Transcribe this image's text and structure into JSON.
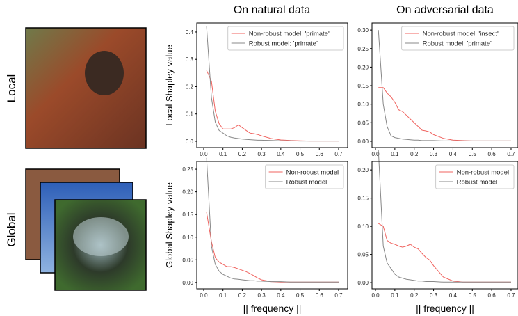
{
  "column_titles": [
    "On natural data",
    "On adversarial data"
  ],
  "row_labels": [
    "Local",
    "Global"
  ],
  "chart_data": [
    {
      "type": "line",
      "y_label": "Local Shapley value",
      "legend": "upper right",
      "grid": false,
      "x": [
        0.015,
        0.04,
        0.06,
        0.08,
        0.1,
        0.12,
        0.14,
        0.16,
        0.18,
        0.2,
        0.22,
        0.24,
        0.26,
        0.28,
        0.3,
        0.35,
        0.4,
        0.45,
        0.5,
        0.55,
        0.6,
        0.65,
        0.7
      ],
      "xlim": [
        -0.036,
        0.747
      ],
      "xticks": [
        {
          "value": 0,
          "label": "0.0"
        },
        0.1,
        0.2,
        0.3,
        0.4,
        0.5,
        0.6,
        0.7
      ],
      "ylim": [
        -0.023,
        0.433
      ],
      "yticks": [
        {
          "value": 0,
          "label": "0.0"
        },
        0.1,
        0.2,
        0.3,
        0.4
      ],
      "series": [
        {
          "name": "Non-robust model: 'primate'",
          "color": "#f0635f",
          "values": [
            0.26,
            0.22,
            0.11,
            0.065,
            0.045,
            0.045,
            0.045,
            0.05,
            0.06,
            0.05,
            0.04,
            0.03,
            0.028,
            0.025,
            0.02,
            0.01,
            0.005,
            0.003,
            0.002,
            0.001,
            0.001,
            0.001,
            0.001
          ]
        },
        {
          "name": "Robust model: 'primate'",
          "color": "#888888",
          "values": [
            0.42,
            0.16,
            0.07,
            0.04,
            0.03,
            0.02,
            0.015,
            0.012,
            0.01,
            0.008,
            0.007,
            0.006,
            0.005,
            0.004,
            0.004,
            0.003,
            0.002,
            0.002,
            0.001,
            0.001,
            0.001,
            0.001,
            0.001
          ]
        }
      ]
    },
    {
      "type": "line",
      "legend": "upper right",
      "grid": false,
      "x": [
        0.015,
        0.04,
        0.06,
        0.08,
        0.1,
        0.12,
        0.14,
        0.16,
        0.18,
        0.2,
        0.22,
        0.24,
        0.26,
        0.28,
        0.3,
        0.35,
        0.4,
        0.45,
        0.5,
        0.55,
        0.6,
        0.65,
        0.7
      ],
      "xlim": [
        -0.018,
        0.736
      ],
      "xticks": [
        {
          "value": 0,
          "label": "0.0"
        },
        0.1,
        0.2,
        0.3,
        0.4,
        0.5,
        0.6,
        0.7
      ],
      "ylim": [
        -0.017,
        0.319
      ],
      "yticks": [
        {
          "value": 0,
          "label": "0.00"
        },
        0.05,
        {
          "value": 0.1,
          "label": "0.10"
        },
        0.15,
        {
          "value": 0.2,
          "label": "0.20"
        },
        0.25,
        {
          "value": 0.3,
          "label": "0.30"
        }
      ],
      "series": [
        {
          "name": "Non-robust model: 'insect'",
          "color": "#f0635f",
          "values": [
            0.145,
            0.145,
            0.13,
            0.12,
            0.105,
            0.085,
            0.08,
            0.07,
            0.06,
            0.05,
            0.04,
            0.03,
            0.028,
            0.025,
            0.018,
            0.008,
            0.003,
            0.002,
            0.001,
            0.001,
            0.001,
            0.001,
            0.001
          ]
        },
        {
          "name": "Robust model: 'primate'",
          "color": "#888888",
          "values": [
            0.3,
            0.1,
            0.04,
            0.015,
            0.01,
            0.008,
            0.006,
            0.005,
            0.004,
            0.003,
            0.003,
            0.002,
            0.002,
            0.002,
            0.002,
            0.001,
            0.001,
            0.001,
            0.001,
            0.001,
            0.001,
            0.001,
            0.001
          ]
        }
      ]
    },
    {
      "type": "line",
      "y_label": "Global Shapley value",
      "x_label": "|| frequency ||",
      "legend": "upper right",
      "grid": false,
      "x": [
        0.015,
        0.04,
        0.06,
        0.08,
        0.1,
        0.12,
        0.14,
        0.16,
        0.18,
        0.2,
        0.22,
        0.24,
        0.26,
        0.28,
        0.3,
        0.35,
        0.4,
        0.45,
        0.5,
        0.55,
        0.6,
        0.65,
        0.7
      ],
      "xlim": [
        -0.036,
        0.747
      ],
      "xticks": [
        {
          "value": 0,
          "label": "0.0"
        },
        0.1,
        0.2,
        0.3,
        0.4,
        0.5,
        0.6,
        0.7
      ],
      "ylim": [
        -0.014,
        0.267
      ],
      "yticks": [
        {
          "value": 0,
          "label": "0.00"
        },
        0.05,
        {
          "value": 0.1,
          "label": "0.10"
        },
        0.15,
        {
          "value": 0.2,
          "label": "0.20"
        },
        0.25
      ],
      "series": [
        {
          "name": "Non-robust model",
          "color": "#f0635f",
          "values": [
            0.155,
            0.09,
            0.055,
            0.045,
            0.04,
            0.035,
            0.035,
            0.033,
            0.03,
            0.027,
            0.024,
            0.02,
            0.015,
            0.01,
            0.006,
            0.002,
            0.001,
            0.001,
            0.001,
            0.001,
            0.001,
            0.001,
            0.001
          ]
        },
        {
          "name": "Robust model",
          "color": "#888888",
          "values": [
            0.275,
            0.08,
            0.04,
            0.025,
            0.018,
            0.014,
            0.01,
            0.008,
            0.007,
            0.006,
            0.005,
            0.004,
            0.004,
            0.003,
            0.003,
            0.002,
            0.002,
            0.001,
            0.001,
            0.001,
            0.001,
            0.001,
            0.001
          ]
        }
      ]
    },
    {
      "type": "line",
      "x_label": "|| frequency ||",
      "legend": "upper right",
      "grid": false,
      "x": [
        0.015,
        0.04,
        0.06,
        0.08,
        0.1,
        0.12,
        0.14,
        0.16,
        0.18,
        0.2,
        0.22,
        0.24,
        0.26,
        0.28,
        0.3,
        0.35,
        0.4,
        0.45,
        0.5,
        0.55,
        0.6,
        0.65,
        0.7
      ],
      "xlim": [
        -0.018,
        0.736
      ],
      "xticks": [
        {
          "value": 0,
          "label": "0.0"
        },
        0.1,
        0.2,
        0.3,
        0.4,
        0.5,
        0.6,
        0.7
      ],
      "ylim": [
        -0.011,
        0.215
      ],
      "yticks": [
        {
          "value": 0,
          "label": "0.00"
        },
        0.05,
        {
          "value": 0.1,
          "label": "0.10"
        },
        0.15,
        {
          "value": 0.2,
          "label": "0.20"
        }
      ],
      "series": [
        {
          "name": "Non-robust model",
          "color": "#f0635f",
          "values": [
            0.105,
            0.1,
            0.075,
            0.07,
            0.068,
            0.065,
            0.063,
            0.065,
            0.068,
            0.063,
            0.06,
            0.052,
            0.045,
            0.04,
            0.03,
            0.01,
            0.003,
            0.001,
            0.001,
            0.001,
            0.001,
            0.001,
            0.001
          ]
        },
        {
          "name": "Robust model",
          "color": "#888888",
          "values": [
            0.235,
            0.065,
            0.035,
            0.025,
            0.015,
            0.01,
            0.008,
            0.006,
            0.005,
            0.004,
            0.003,
            0.003,
            0.002,
            0.002,
            0.002,
            0.001,
            0.001,
            0.001,
            0.001,
            0.001,
            0.001,
            0.001,
            0.001
          ]
        }
      ]
    }
  ]
}
